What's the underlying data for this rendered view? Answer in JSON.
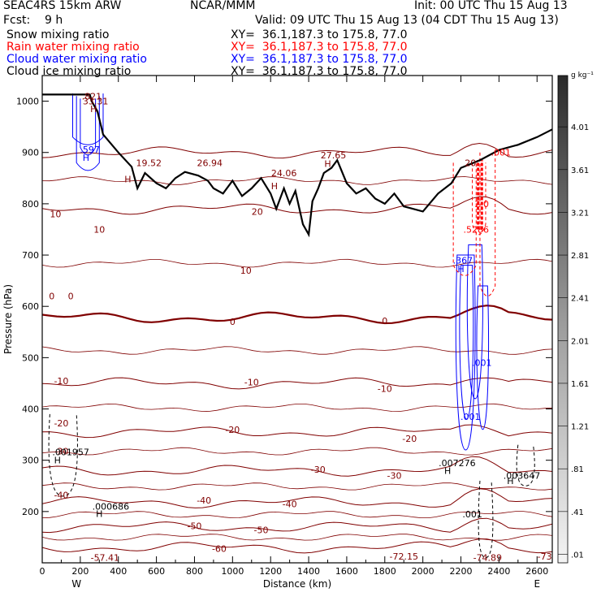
{
  "header": {
    "model": "SEAC4RS 15km ARW",
    "org": "NCAR/MMM",
    "init": "Init: 00 UTC Thu 15 Aug 13",
    "fcst": "Fcst:    9 h",
    "valid": "Valid: 09 UTC Thu 15 Aug 13 (04 CDT Thu 15 Aug 13)"
  },
  "fields": [
    {
      "name": "Snow mixing ratio",
      "xy": "XY=  36.1,187.3 to 175.8, 77.0",
      "color": "#000000"
    },
    {
      "name": "Rain water mixing ratio",
      "xy": "XY=  36.1,187.3 to 175.8, 77.0",
      "color": "#ff0000"
    },
    {
      "name": "Cloud water mixing ratio",
      "xy": "XY=  36.1,187.3 to 175.8, 77.0",
      "color": "#0000ff"
    },
    {
      "name": "Cloud ice mixing ratio",
      "xy": "XY=  36.1,187.3 to 175.8, 77.0",
      "color": "#000000"
    }
  ],
  "chart_data": {
    "type": "cross-section",
    "xlabel": "Distance (km)",
    "ylabel": "Pressure (hPa)",
    "xlim": [
      0,
      2680
    ],
    "ylim": [
      1050,
      100
    ],
    "x_ticks": [
      "0",
      "200",
      "400",
      "600",
      "800",
      "1000",
      "1200",
      "1400",
      "1600",
      "1800",
      "2000",
      "2200",
      "2400",
      "2600"
    ],
    "y_ticks": [
      "200",
      "300",
      "400",
      "500",
      "600",
      "700",
      "800",
      "900",
      "1000"
    ],
    "x_end_labels": {
      "left": "W",
      "right": "E"
    },
    "colorbar": {
      "unit": "g kg⁻¹",
      "labels": [
        "4.01",
        "3.61",
        "3.21",
        "2.81",
        "2.41",
        "2.01",
        "1.61",
        "1.21",
        ".81",
        ".41",
        ".01"
      ]
    },
    "temperature_contours": [
      {
        "label": "-60",
        "p": 130
      },
      {
        "label": "-50",
        "p": 170
      },
      {
        "label": "-40",
        "p": 218
      },
      {
        "label": "-30",
        "p": 280
      },
      {
        "label": "-20",
        "p": 355
      },
      {
        "label": "-10",
        "p": 450
      },
      {
        "label": "0",
        "p": 578
      },
      {
        "label": "10",
        "p": 790
      },
      {
        "label": "20",
        "p": 900
      }
    ],
    "temperature_labels": [
      {
        "text": "-60",
        "x": 930,
        "p": 128
      },
      {
        "text": "-50",
        "x": 1150,
        "p": 164
      },
      {
        "text": "-50",
        "x": 800,
        "p": 172
      },
      {
        "text": "-40",
        "x": 1300,
        "p": 215
      },
      {
        "text": "-40",
        "x": 850,
        "p": 222
      },
      {
        "text": "-40",
        "x": 100,
        "p": 232
      },
      {
        "text": "-30",
        "x": 1850,
        "p": 270
      },
      {
        "text": "-30",
        "x": 1450,
        "p": 282
      },
      {
        "text": "-30",
        "x": 100,
        "p": 318
      },
      {
        "text": "-20",
        "x": 1930,
        "p": 342
      },
      {
        "text": "-20",
        "x": 1000,
        "p": 360
      },
      {
        "text": "-20",
        "x": 100,
        "p": 372
      },
      {
        "text": "-10",
        "x": 1800,
        "p": 440
      },
      {
        "text": "-10",
        "x": 1100,
        "p": 452
      },
      {
        "text": "-10",
        "x": 100,
        "p": 455
      },
      {
        "text": "0",
        "x": 1800,
        "p": 572
      },
      {
        "text": "0",
        "x": 1000,
        "p": 570
      },
      {
        "text": "0",
        "x": 150,
        "p": 620
      },
      {
        "text": "0",
        "x": 50,
        "p": 620
      },
      {
        "text": "10",
        "x": 1070,
        "p": 670
      },
      {
        "text": "10",
        "x": 300,
        "p": 750
      },
      {
        "text": "10",
        "x": 70,
        "p": 780
      },
      {
        "text": "20",
        "x": 1130,
        "p": 785
      }
    ],
    "extrema_labels": [
      {
        "text": "H",
        "x": 300,
        "p": 196,
        "color": "#000000"
      },
      {
        "text": ".000686",
        "x": 360,
        "p": 210,
        "color": "#000000"
      },
      {
        "text": "H",
        "x": 80,
        "p": 300,
        "color": "#000000"
      },
      {
        "text": ".001957",
        "x": 150,
        "p": 316,
        "color": "#000000"
      },
      {
        "text": "H",
        "x": 2130,
        "p": 280,
        "color": "#000000"
      },
      {
        "text": ".007276",
        "x": 2180,
        "p": 295,
        "color": "#000000"
      },
      {
        "text": "H",
        "x": 2460,
        "p": 260,
        "color": "#000000"
      },
      {
        "text": ".003647",
        "x": 2520,
        "p": 270,
        "color": "#000000"
      },
      {
        "text": ".001",
        "x": 2260,
        "p": 195,
        "color": "#000000"
      },
      {
        "text": "-57.41",
        "x": 330,
        "p": 110,
        "color": "#800000"
      },
      {
        "text": "-72.15",
        "x": 1900,
        "p": 113,
        "color": "#800000"
      },
      {
        "text": "-74.89",
        "x": 2340,
        "p": 110,
        "color": "#800000"
      },
      {
        "text": "-73",
        "x": 2640,
        "p": 113,
        "color": "#800000"
      },
      {
        "text": "H",
        "x": 2200,
        "p": 673,
        "color": "#0000ff"
      },
      {
        "text": ".367",
        "x": 2210,
        "p": 690,
        "color": "#0000ff"
      },
      {
        "text": ".001",
        "x": 2250,
        "p": 385,
        "color": "#0000ff"
      },
      {
        "text": ".001",
        "x": 2310,
        "p": 490,
        "color": "#0000ff"
      },
      {
        "text": ".5286",
        "x": 2280,
        "p": 750,
        "color": "#ff0000"
      },
      {
        "text": "2.0",
        "x": 2310,
        "p": 800,
        "color": "#ff0000"
      },
      {
        "text": ".001",
        "x": 2410,
        "p": 900,
        "color": "#ff0000"
      },
      {
        "text": "20",
        "x": 2250,
        "p": 880,
        "color": "#800000"
      },
      {
        "text": "H",
        "x": 450,
        "p": 848,
        "color": "#800000"
      },
      {
        "text": "19.52",
        "x": 560,
        "p": 880,
        "color": "#800000"
      },
      {
        "text": "26.94",
        "x": 880,
        "p": 880,
        "color": "#800000"
      },
      {
        "text": "H",
        "x": 1220,
        "p": 835,
        "color": "#800000"
      },
      {
        "text": "24.06",
        "x": 1270,
        "p": 860,
        "color": "#800000"
      },
      {
        "text": "H",
        "x": 1500,
        "p": 878,
        "color": "#800000"
      },
      {
        "text": "27.65",
        "x": 1530,
        "p": 895,
        "color": "#800000"
      },
      {
        "text": "H",
        "x": 230,
        "p": 890,
        "color": "#0000ff"
      },
      {
        "text": ".597",
        "x": 250,
        "p": 906,
        "color": "#0000ff"
      },
      {
        "text": "H",
        "x": 270,
        "p": 985,
        "color": "#800000"
      },
      {
        "text": "33.31",
        "x": 280,
        "p": 1000,
        "color": "#800000"
      },
      {
        "text": ".821",
        "x": 260,
        "p": 1010,
        "color": "#800000"
      }
    ],
    "terrain": {
      "x": [
        0,
        250,
        260,
        290,
        320,
        400,
        470,
        500,
        540,
        600,
        650,
        700,
        750,
        820,
        870,
        900,
        950,
        1000,
        1050,
        1100,
        1150,
        1200,
        1230,
        1270,
        1300,
        1330,
        1370,
        1400,
        1420,
        1450,
        1480,
        1520,
        1550,
        1600,
        1650,
        1700,
        1750,
        1800,
        1850,
        1900,
        2000,
        2080,
        2150,
        2200,
        2300,
        2400,
        2500,
        2600,
        2680
      ],
      "p": [
        1013,
        1013,
        1000,
        980,
        935,
        900,
        872,
        830,
        860,
        840,
        830,
        850,
        862,
        855,
        845,
        830,
        820,
        845,
        815,
        830,
        850,
        820,
        790,
        830,
        800,
        825,
        760,
        740,
        805,
        830,
        860,
        870,
        885,
        840,
        820,
        830,
        810,
        800,
        820,
        795,
        785,
        820,
        840,
        870,
        885,
        905,
        915,
        930,
        945
      ]
    }
  }
}
